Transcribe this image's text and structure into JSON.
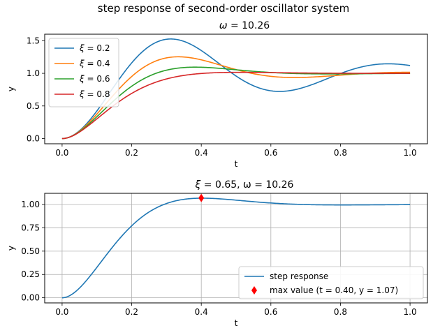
{
  "figure": {
    "suptitle": "step response of second-order oscillator system"
  },
  "colors": {
    "c0": "#1f77b4",
    "c1": "#ff7f0e",
    "c2": "#2ca02c",
    "c3": "#d62728",
    "marker": "#ff0000",
    "grid": "#b0b0b0"
  },
  "chart_data": [
    {
      "type": "line",
      "title_prefix": "ω",
      "title_value": "= 10.26",
      "xlabel": "t",
      "ylabel": "y",
      "xlim": [
        -0.05,
        1.05
      ],
      "ylim": [
        -0.08,
        1.6
      ],
      "xticks": [
        0.0,
        0.2,
        0.4,
        0.6,
        0.8,
        1.0
      ],
      "xtick_labels": [
        "0.0",
        "0.2",
        "0.4",
        "0.6",
        "0.8",
        "1.0"
      ],
      "yticks": [
        0.0,
        0.5,
        1.0,
        1.5
      ],
      "ytick_labels": [
        "0.0",
        "0.5",
        "1.0",
        "1.5"
      ],
      "grid": false,
      "legend_position": "upper-left",
      "omega": 10.26,
      "t_range": [
        0,
        1
      ],
      "series": [
        {
          "name_symbol": "ξ",
          "name_value": "= 0.2",
          "xi": 0.2,
          "color": "#1f77b4"
        },
        {
          "name_symbol": "ξ",
          "name_value": "= 0.4",
          "xi": 0.4,
          "color": "#ff7f0e"
        },
        {
          "name_symbol": "ξ",
          "name_value": "= 0.6",
          "xi": 0.6,
          "color": "#2ca02c"
        },
        {
          "name_symbol": "ξ",
          "name_value": "= 0.8",
          "xi": 0.8,
          "color": "#d62728"
        }
      ]
    },
    {
      "type": "line",
      "title_prefix": "ξ",
      "title_value": "= 0.65, ω = 10.26",
      "xlabel": "t",
      "ylabel": "y",
      "xlim": [
        -0.05,
        1.05
      ],
      "ylim": [
        -0.055,
        1.12
      ],
      "xticks": [
        0.0,
        0.2,
        0.4,
        0.6,
        0.8,
        1.0
      ],
      "xtick_labels": [
        "0.0",
        "0.2",
        "0.4",
        "0.6",
        "0.8",
        "1.0"
      ],
      "yticks": [
        0.0,
        0.25,
        0.5,
        0.75,
        1.0
      ],
      "ytick_labels": [
        "0.00",
        "0.25",
        "0.50",
        "0.75",
        "1.00"
      ],
      "grid": true,
      "legend_position": "lower-right",
      "omega": 10.26,
      "t_range": [
        0,
        1
      ],
      "series": [
        {
          "name": "step response",
          "xi": 0.65,
          "color": "#1f77b4"
        }
      ],
      "marker": {
        "name": "max value (t = 0.40, y = 1.07)",
        "t": 0.4,
        "y": 1.07,
        "color": "#ff0000"
      }
    }
  ]
}
